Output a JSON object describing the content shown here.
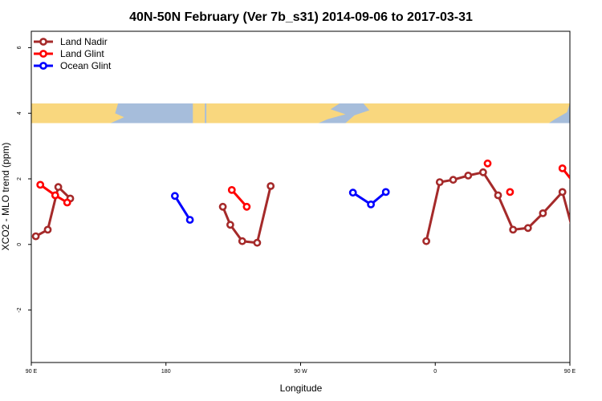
{
  "chart_data": {
    "type": "line",
    "title": "40N-50N February (Ver 7b_s31)   2014-09-06 to 2017-03-31",
    "xlabel": "Longitude",
    "ylabel": "XCO2 - MLO trend (ppm)",
    "xlim": [
      90,
      450
    ],
    "ylim": [
      -3.6,
      6.5
    ],
    "x_ticks": [
      {
        "value": 90,
        "label": "90 E"
      },
      {
        "value": 180,
        "label": "180"
      },
      {
        "value": 270,
        "label": "90 W"
      },
      {
        "value": 360,
        "label": "0"
      },
      {
        "value": 450,
        "label": "90 E"
      },
      {
        "value": 540,
        "label": "180"
      }
    ],
    "y_ticks": [
      {
        "value": -2,
        "label": "-2"
      },
      {
        "value": 0,
        "label": "0"
      },
      {
        "value": 2,
        "label": "2"
      },
      {
        "value": 4,
        "label": "4"
      },
      {
        "value": 6,
        "label": "6"
      }
    ],
    "grid": false,
    "legend_position": "top-left",
    "map_strip": {
      "ymin": 3.7,
      "ymax": 4.3,
      "land_color": "#f9d77e",
      "ocean_color": "#a6bddb"
    },
    "series": [
      {
        "name": "Land Nadir",
        "color": "#a52a2a",
        "segments": [
          [
            [
              93,
              0.25
            ],
            [
              101,
              0.45
            ],
            [
              108,
              1.75
            ],
            [
              116,
              1.4
            ]
          ],
          [
            [
              218,
              1.15
            ],
            [
              223,
              0.6
            ],
            [
              231,
              0.1
            ],
            [
              241,
              0.05
            ],
            [
              250,
              1.78
            ]
          ],
          [
            [
              354,
              0.1
            ],
            [
              363,
              1.9
            ],
            [
              372,
              1.97
            ],
            [
              382,
              2.1
            ],
            [
              392,
              2.2
            ],
            [
              402,
              1.5
            ],
            [
              412,
              0.45
            ],
            [
              422,
              0.5
            ],
            [
              432,
              0.95
            ],
            [
              445,
              1.6
            ],
            [
              453,
              0.25
            ],
            [
              463,
              0.45
            ],
            [
              472,
              1.72
            ],
            [
              481,
              1.4
            ]
          ]
        ]
      },
      {
        "name": "Land Glint",
        "color": "#ff0000",
        "segments": [
          [
            [
              96,
              1.82
            ],
            [
              106,
              1.5
            ],
            [
              114,
              1.28
            ]
          ],
          [
            [
              224,
              1.66
            ],
            [
              234,
              1.15
            ]
          ],
          [
            [
              395,
              2.47
            ]
          ],
          [
            [
              410,
              1.6
            ]
          ],
          [
            [
              445,
              2.32
            ],
            [
              454,
              1.8
            ],
            [
              464,
              1.5
            ],
            [
              473,
              1.28
            ]
          ]
        ]
      },
      {
        "name": "Ocean Glint",
        "color": "#0000ff",
        "segments": [
          [
            [
              186,
              1.48
            ],
            [
              196,
              0.75
            ]
          ],
          [
            [
              305,
              1.58
            ],
            [
              317,
              1.22
            ],
            [
              327,
              1.6
            ]
          ]
        ]
      }
    ]
  }
}
